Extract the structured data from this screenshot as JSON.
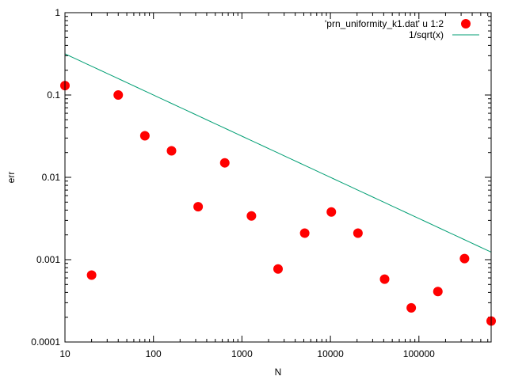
{
  "chart_data": {
    "type": "scatter",
    "title": "",
    "xlabel": "N",
    "ylabel": "err",
    "xscale": "log",
    "yscale": "log",
    "xlim": [
      10,
      655360
    ],
    "ylim": [
      0.0001,
      1
    ],
    "grid": false,
    "legend_position": "top-right",
    "x_ticks": [
      "10",
      "100",
      "1000",
      "10000",
      "100000"
    ],
    "y_ticks": [
      "0.0001",
      "0.001",
      "0.01",
      "0.1",
      "1"
    ],
    "series": [
      {
        "name": "'prn_uniformity_k1.dat' u 1:2",
        "type": "scatter",
        "color": "#ff0000",
        "x": [
          10,
          20,
          40,
          80,
          160,
          320,
          640,
          1280,
          2560,
          5120,
          10240,
          20480,
          40960,
          81920,
          163840,
          327680,
          655360
        ],
        "y": [
          0.13,
          0.00065,
          0.1,
          0.032,
          0.021,
          0.0044,
          0.015,
          0.0034,
          0.00077,
          0.0021,
          0.0038,
          0.0021,
          0.00058,
          0.00026,
          0.00041,
          0.00103,
          0.00018
        ]
      },
      {
        "name": "1/sqrt(x)",
        "type": "line",
        "color": "#009e73",
        "x": [
          10,
          655360
        ],
        "y": [
          0.3162,
          0.001235
        ]
      }
    ]
  }
}
